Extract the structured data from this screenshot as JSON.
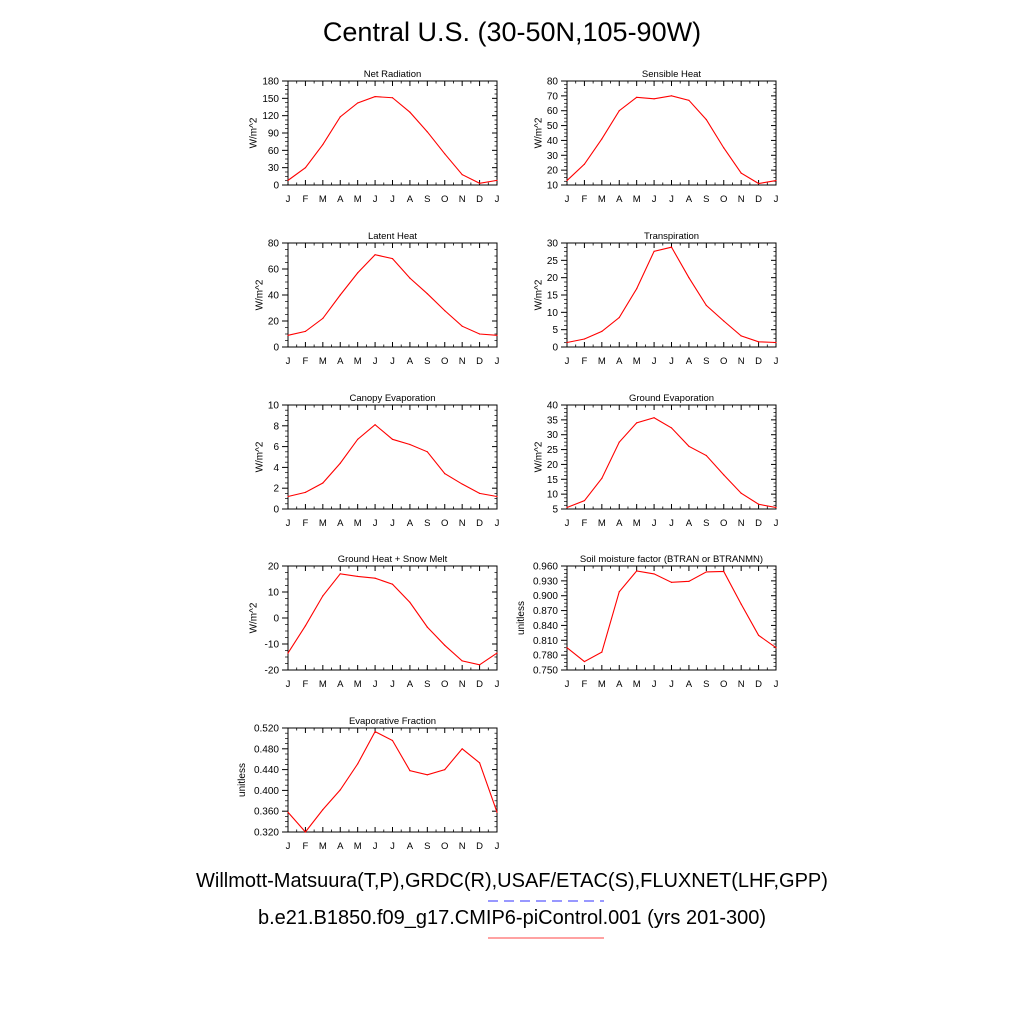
{
  "title": "Central U.S. (30-50N,105-90W)",
  "legend": [
    {
      "label": "Willmott-Matsuura(T,P),GRDC(R),USAF/ETAC(S),FLUXNET(LHF,GPP)",
      "color": "#5a5aff",
      "style": "dashed"
    },
    {
      "label": "b.e21.B1850.f09_g17.CMIP6-piControl.001 (yrs 201-300)",
      "color": "#ff6a6a",
      "style": "solid"
    }
  ],
  "chart_data": [
    {
      "type": "line",
      "title": "Net Radiation",
      "ylabel": "W/m^2",
      "categories": [
        "J",
        "F",
        "M",
        "A",
        "M",
        "J",
        "J",
        "A",
        "S",
        "O",
        "N",
        "D",
        "J"
      ],
      "ylim": [
        0,
        180
      ],
      "yticks": [
        "0",
        "30",
        "60",
        "90",
        "120",
        "150",
        "180"
      ],
      "series": [
        {
          "values": [
            8,
            30,
            70,
            118,
            142,
            153,
            151,
            126,
            92,
            54,
            18,
            3,
            8
          ],
          "color": "#ff0000"
        }
      ]
    },
    {
      "type": "line",
      "title": "Sensible Heat",
      "ylabel": "W/m^2",
      "categories": [
        "J",
        "F",
        "M",
        "A",
        "M",
        "J",
        "J",
        "A",
        "S",
        "O",
        "N",
        "D",
        "J"
      ],
      "ylim": [
        10,
        80
      ],
      "yticks": [
        "10",
        "20",
        "30",
        "40",
        "50",
        "60",
        "70",
        "80"
      ],
      "series": [
        {
          "values": [
            13,
            24,
            41,
            60,
            69,
            68,
            70,
            67,
            54,
            35,
            18,
            11,
            13
          ],
          "color": "#ff0000"
        }
      ]
    },
    {
      "type": "line",
      "title": "Latent Heat",
      "ylabel": "W/m^2",
      "categories": [
        "J",
        "F",
        "M",
        "A",
        "M",
        "J",
        "J",
        "A",
        "S",
        "O",
        "N",
        "D",
        "J"
      ],
      "ylim": [
        0,
        80
      ],
      "yticks": [
        "0",
        "20",
        "40",
        "60",
        "80"
      ],
      "series": [
        {
          "values": [
            9,
            12,
            22,
            40,
            57,
            71,
            68,
            53,
            41,
            28,
            16,
            10,
            9
          ],
          "color": "#ff0000"
        }
      ]
    },
    {
      "type": "line",
      "title": "Transpiration",
      "ylabel": "W/m^2",
      "categories": [
        "J",
        "F",
        "M",
        "A",
        "M",
        "J",
        "J",
        "A",
        "S",
        "O",
        "N",
        "D",
        "J"
      ],
      "ylim": [
        0,
        30
      ],
      "yticks": [
        "0",
        "5",
        "10",
        "15",
        "20",
        "25",
        "30"
      ],
      "series": [
        {
          "values": [
            1.3,
            2.3,
            4.5,
            8.5,
            16.8,
            27.6,
            28.8,
            20.0,
            12.0,
            7.5,
            3.2,
            1.5,
            1.3
          ],
          "color": "#ff0000"
        }
      ]
    },
    {
      "type": "line",
      "title": "Canopy Evaporation",
      "ylabel": "W/m^2",
      "categories": [
        "J",
        "F",
        "M",
        "A",
        "M",
        "J",
        "J",
        "A",
        "S",
        "O",
        "N",
        "D",
        "J"
      ],
      "ylim": [
        0,
        10
      ],
      "yticks": [
        "0",
        "2",
        "4",
        "6",
        "8",
        "10"
      ],
      "series": [
        {
          "values": [
            1.2,
            1.6,
            2.5,
            4.4,
            6.7,
            8.1,
            6.7,
            6.2,
            5.5,
            3.4,
            2.4,
            1.5,
            1.2
          ],
          "color": "#ff0000"
        }
      ]
    },
    {
      "type": "line",
      "title": "Ground Evaporation",
      "ylabel": "W/m^2",
      "categories": [
        "J",
        "F",
        "M",
        "A",
        "M",
        "J",
        "J",
        "A",
        "S",
        "O",
        "N",
        "D",
        "J"
      ],
      "ylim": [
        5,
        40
      ],
      "yticks": [
        "5",
        "10",
        "15",
        "20",
        "25",
        "30",
        "35",
        "40"
      ],
      "series": [
        {
          "values": [
            5.5,
            7.8,
            15.3,
            27.5,
            34,
            35.7,
            32.3,
            26.1,
            23.0,
            16.5,
            10.3,
            6.6,
            5.5
          ],
          "color": "#ff0000"
        }
      ]
    },
    {
      "type": "line",
      "title": "Ground Heat + Snow Melt",
      "ylabel": "W/m^2",
      "categories": [
        "J",
        "F",
        "M",
        "A",
        "M",
        "J",
        "J",
        "A",
        "S",
        "O",
        "N",
        "D",
        "J"
      ],
      "ylim": [
        -20,
        20
      ],
      "yticks": [
        "-20",
        "-10",
        "0",
        "10",
        "20"
      ],
      "series": [
        {
          "values": [
            -13.5,
            -3,
            8.5,
            17,
            16,
            15.3,
            13,
            6,
            -3.5,
            -10.5,
            -16.5,
            -18,
            -13.5
          ],
          "color": "#ff0000"
        }
      ]
    },
    {
      "type": "line",
      "title": "Soil moisture factor (BTRAN or BTRANMN)",
      "ylabel": "unitless",
      "categories": [
        "J",
        "F",
        "M",
        "A",
        "M",
        "J",
        "J",
        "A",
        "S",
        "O",
        "N",
        "D",
        "J"
      ],
      "ylim": [
        0.75,
        0.96
      ],
      "yticks": [
        "0.750",
        "0.780",
        "0.810",
        "0.840",
        "0.870",
        "0.900",
        "0.930",
        "0.960"
      ],
      "series": [
        {
          "values": [
            0.795,
            0.767,
            0.786,
            0.908,
            0.95,
            0.944,
            0.927,
            0.929,
            0.948,
            0.949,
            0.883,
            0.82,
            0.795
          ],
          "color": "#ff0000"
        }
      ]
    },
    {
      "type": "line",
      "title": "Evaporative Fraction",
      "ylabel": "unitless",
      "categories": [
        "J",
        "F",
        "M",
        "A",
        "M",
        "J",
        "J",
        "A",
        "S",
        "O",
        "N",
        "D",
        "J"
      ],
      "ylim": [
        0.32,
        0.52
      ],
      "yticks": [
        "0.320",
        "0.360",
        "0.400",
        "0.440",
        "0.480",
        "0.520"
      ],
      "series": [
        {
          "values": [
            0.358,
            0.32,
            0.363,
            0.401,
            0.451,
            0.513,
            0.496,
            0.438,
            0.43,
            0.44,
            0.48,
            0.453,
            0.358
          ],
          "color": "#ff0000"
        }
      ]
    }
  ]
}
